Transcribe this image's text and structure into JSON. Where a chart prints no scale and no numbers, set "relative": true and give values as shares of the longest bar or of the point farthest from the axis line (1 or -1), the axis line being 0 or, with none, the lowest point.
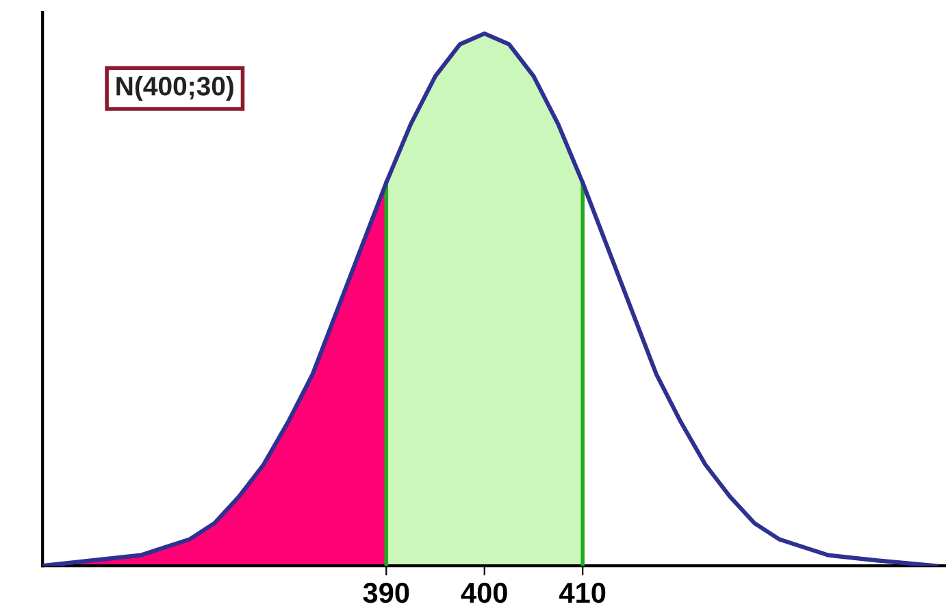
{
  "chart_data": {
    "type": "line",
    "relative": true,
    "xlim": [
      355,
      447
    ],
    "xticks": [
      390,
      400,
      410
    ],
    "annotations": [
      "N(400;30)"
    ],
    "grid": false,
    "legend": false,
    "marker": "none",
    "line_style": "solid",
    "series": [
      {
        "type": "area",
        "color": "#ff0075",
        "x": [
          355,
          360,
          365,
          370,
          372.5,
          375,
          377.5,
          380,
          382.5,
          385,
          387.5,
          390
        ],
        "values": [
          0.0,
          0.01,
          0.02,
          0.05,
          0.08,
          0.13,
          0.19,
          0.27,
          0.36,
          0.48,
          0.6,
          0.72
        ]
      },
      {
        "type": "area",
        "color": "#ccf7bb",
        "x": [
          390,
          392.5,
          395,
          397.5,
          400,
          402.5,
          405,
          407.5,
          410
        ],
        "values": [
          0.72,
          0.83,
          0.92,
          0.98,
          1.0,
          0.98,
          0.92,
          0.83,
          0.72
        ]
      },
      {
        "color": "#2e3192",
        "x": [
          355,
          360,
          365,
          370,
          372.5,
          375,
          377.5,
          380,
          382.5,
          385,
          387.5,
          390,
          392.5,
          395,
          397.5,
          400,
          402.5,
          405,
          407.5,
          410,
          412.5,
          415,
          417.5,
          420,
          422.5,
          425,
          427.5,
          430,
          435,
          440,
          446
        ],
        "values": [
          0.0,
          0.01,
          0.02,
          0.05,
          0.08,
          0.13,
          0.19,
          0.27,
          0.36,
          0.48,
          0.6,
          0.72,
          0.83,
          0.92,
          0.98,
          1.0,
          0.98,
          0.92,
          0.83,
          0.72,
          0.6,
          0.48,
          0.36,
          0.27,
          0.19,
          0.13,
          0.08,
          0.05,
          0.02,
          0.01,
          0.0
        ]
      }
    ],
    "ref_lines": [
      {
        "axis": "x",
        "value": 390,
        "color": "#22aa22"
      },
      {
        "axis": "x",
        "value": 410,
        "color": "#22aa22"
      }
    ]
  }
}
